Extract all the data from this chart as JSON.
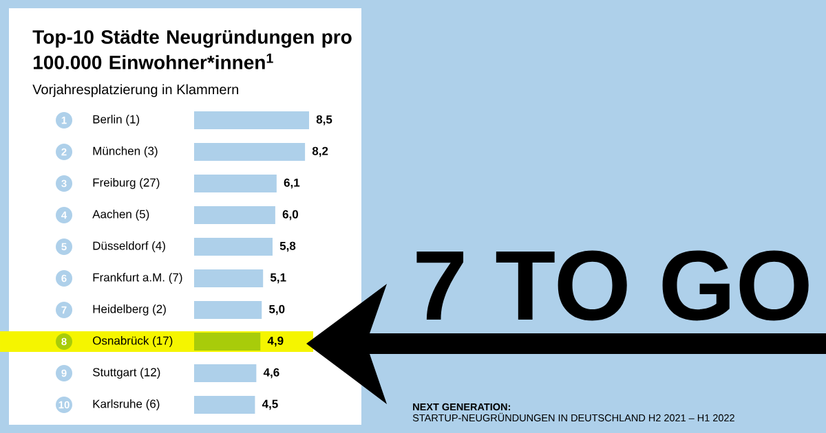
{
  "chart_data": {
    "type": "bar",
    "orientation": "horizontal",
    "title": "Top-10 Städte Neugründungen pro 100.000 Einwohner*innen$^{1}$",
    "subtitle": "Vorjahresplatzierung in Klammern",
    "categories": [
      "Berlin (1)",
      "München (3)",
      "Freiburg (27)",
      "Aachen (5)",
      "Düsseldorf (4)",
      "Frankfurt a.M. (7)",
      "Heidelberg (2)",
      "Osnabrück (17)",
      "Stuttgart (12)",
      "Karlsruhe (6)"
    ],
    "values": [
      8.5,
      8.2,
      6.1,
      6.0,
      5.8,
      5.1,
      5.0,
      4.9,
      4.6,
      4.5
    ],
    "value_labels": [
      "8,5",
      "8,2",
      "6,1",
      "6,0",
      "5,8",
      "5,1",
      "5,0",
      "4,9",
      "4,6",
      "4,5"
    ],
    "colors": [
      "#aed0ea",
      "#aed0ea",
      "#aed0ea",
      "#aed0ea",
      "#aed0ea",
      "#aed0ea",
      "#aed0ea",
      "#a8cc0a",
      "#aed0ea",
      "#aed0ea"
    ],
    "bands": [
      {
        "axis": "y",
        "from": "Osnabrück (17)",
        "to": "Osnabrück (17)",
        "color": "#f5f500"
      }
    ],
    "annotations": [
      "1",
      "2",
      "3",
      "4",
      "5",
      "6",
      "7",
      "8",
      "9",
      "10",
      "7 TO GO",
      "**NEXT GENERATION:**",
      "STARTUP-NEUGRÜNDUNGEN IN DEUTSCHLAND H2 2021 – H1 2022"
    ]
  }
}
